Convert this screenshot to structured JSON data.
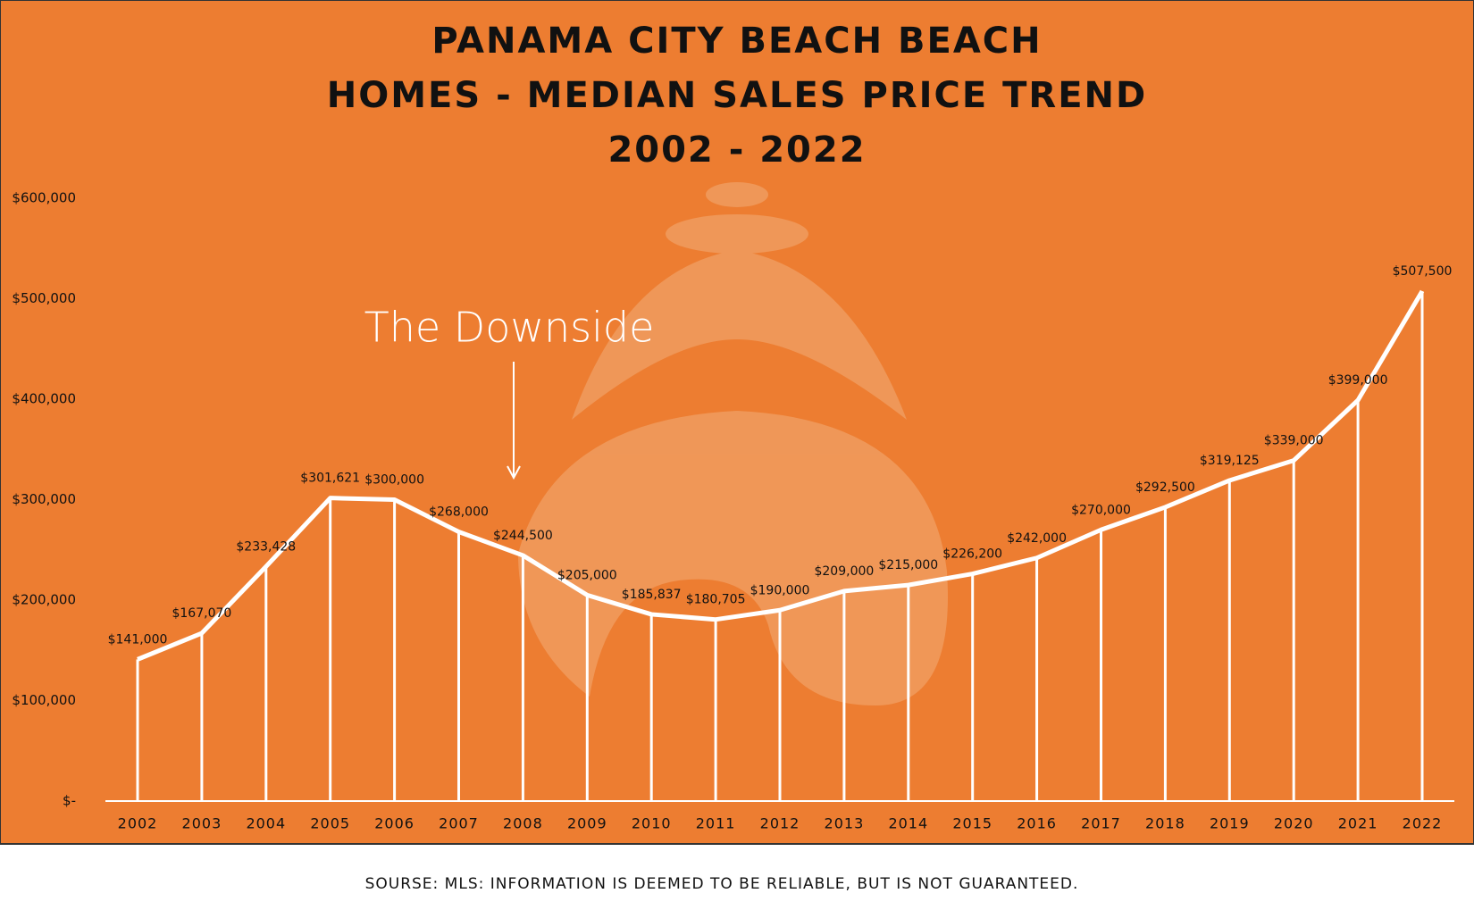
{
  "chart_data": {
    "type": "line",
    "title": [
      "PANAMA CITY BEACH BEACH",
      "HOMES - MEDIAN SALES PRICE TREND",
      "2002 - 2022"
    ],
    "annotation": "The Downside",
    "source": "SOURSE: MLS: INFORMATION IS DEEMED TO BE RELIABLE, BUT IS NOT GUARANTEED.",
    "categories": [
      "2002",
      "2003",
      "2004",
      "2005",
      "2006",
      "2007",
      "2008",
      "2009",
      "2010",
      "2011",
      "2012",
      "2013",
      "2014",
      "2015",
      "2016",
      "2017",
      "2018",
      "2019",
      "2020",
      "2021",
      "2022"
    ],
    "values": [
      141000,
      167070,
      233428,
      301621,
      300000,
      268000,
      244500,
      205000,
      185837,
      180705,
      190000,
      209000,
      215000,
      226200,
      242000,
      270000,
      292500,
      319125,
      339000,
      399000,
      507500
    ],
    "value_labels": [
      "$141,000",
      "$167,070",
      "$233,428",
      "$301,621",
      "$300,000",
      "$268,000",
      "$244,500",
      "$205,000",
      "$185,837",
      "$180,705",
      "$190,000",
      "$209,000",
      "$215,000",
      "$226,200",
      "$242,000",
      "$270,000",
      "$292,500",
      "$319,125",
      "$339,000",
      "$399,000",
      "$507,500"
    ],
    "color": "#ffffff",
    "ylim": [
      0,
      600000
    ],
    "yticks": [
      {
        "value": 0,
        "label": "$-"
      },
      {
        "value": 100000,
        "label": "$100,000"
      },
      {
        "value": 200000,
        "label": "$200,000"
      },
      {
        "value": 300000,
        "label": "$300,000"
      },
      {
        "value": 400000,
        "label": "$400,000"
      },
      {
        "value": 500000,
        "label": "$500,000"
      },
      {
        "value": 600000,
        "label": "$600,000"
      }
    ],
    "grid": false
  }
}
